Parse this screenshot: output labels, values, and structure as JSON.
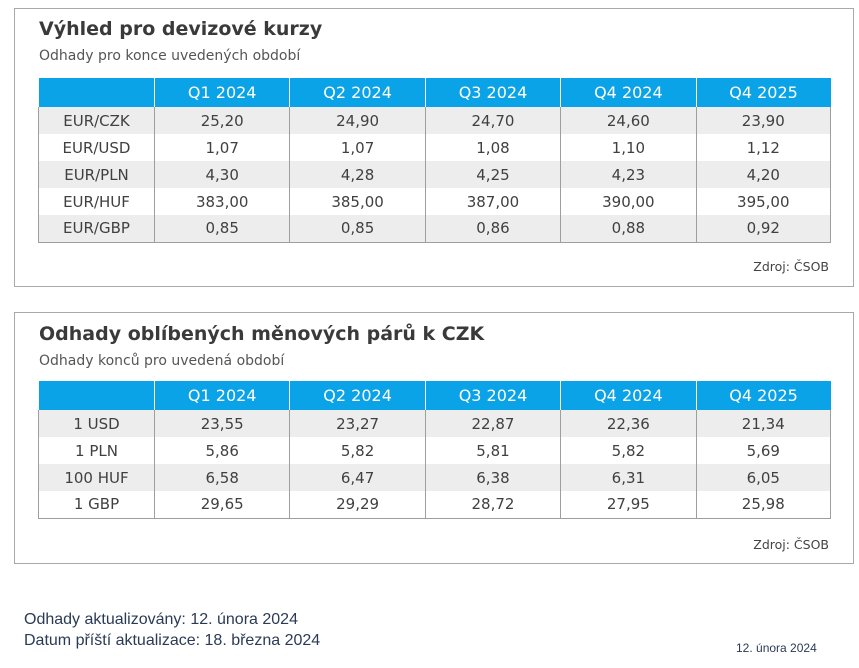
{
  "card1": {
    "title": "Výhled pro devizové kurzy",
    "subtitle": "Odhady pro konce uvedených období",
    "columns": [
      "",
      "Q1 2024",
      "Q2 2024",
      "Q3 2024",
      "Q4 2024",
      "Q4 2025"
    ],
    "rows": [
      [
        "EUR/CZK",
        "25,20",
        "24,90",
        "24,70",
        "24,60",
        "23,90"
      ],
      [
        "EUR/USD",
        "1,07",
        "1,07",
        "1,08",
        "1,10",
        "1,12"
      ],
      [
        "EUR/PLN",
        "4,30",
        "4,28",
        "4,25",
        "4,23",
        "4,20"
      ],
      [
        "EUR/HUF",
        "383,00",
        "385,00",
        "387,00",
        "390,00",
        "395,00"
      ],
      [
        "EUR/GBP",
        "0,85",
        "0,85",
        "0,86",
        "0,88",
        "0,92"
      ]
    ],
    "source": "Zdroj: ČSOB"
  },
  "card2": {
    "title": "Odhady oblíbených měnových párů k CZK",
    "subtitle": "Odhady konců pro uvedená období",
    "columns": [
      "",
      "Q1 2024",
      "Q2 2024",
      "Q3 2024",
      "Q4 2024",
      "Q4 2025"
    ],
    "rows": [
      [
        "1 USD",
        "23,55",
        "23,27",
        "22,87",
        "22,36",
        "21,34"
      ],
      [
        "1 PLN",
        "5,86",
        "5,82",
        "5,81",
        "5,82",
        "5,69"
      ],
      [
        "100 HUF",
        "6,58",
        "6,47",
        "6,38",
        "6,31",
        "6,05"
      ],
      [
        "1 GBP",
        "29,65",
        "29,29",
        "28,72",
        "27,95",
        "25,98"
      ]
    ],
    "source": "Zdroj: ČSOB"
  },
  "footer": {
    "updated": "Odhady aktualizovány: 12. února 2024",
    "next_update": "Datum příští aktualizace: 18. března 2024",
    "date": "12. února 2024"
  },
  "colors": {
    "header_bg": "#0ba3e8",
    "stripe_bg": "#ededed",
    "footer_text": "#2b3a55"
  }
}
